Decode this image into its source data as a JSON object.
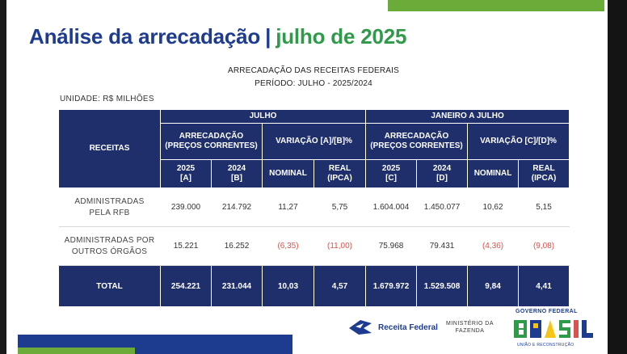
{
  "slide": {
    "title_main": "Análise da arrecadação",
    "title_sep": "|",
    "title_period": "julho de 2025",
    "subtitle_line1": "ARRECADAÇÃO DAS RECEITAS FEDERAIS",
    "subtitle_line2": "PERÍODO: JULHO - 2025/2024",
    "unit": "UNIDADE: R$ MILHÕES"
  },
  "table": {
    "header_receitas": "RECEITAS",
    "group1": "JULHO",
    "group2": "JANEIRO A JULHO",
    "arrecadacao_line1": "ARRECADAÇÃO",
    "arrecadacao_line2": "(PREÇOS CORRENTES)",
    "variacao1": "VARIAÇÃO [A]/[B]%",
    "variacao2": "VARIAÇÃO [C]/[D]%",
    "col_2025_a_year": "2025",
    "col_2025_a_tag": "[A]",
    "col_2024_b_year": "2024",
    "col_2024_b_tag": "[B]",
    "col_2025_c_year": "2025",
    "col_2025_c_tag": "[C]",
    "col_2024_d_year": "2024",
    "col_2024_d_tag": "[D]",
    "nominal1": "NOMINAL",
    "real1_line1": "REAL",
    "real1_line2": "(IPCA)",
    "nominal2": "NOMINAL",
    "real2_line1": "REAL",
    "real2_line2": "(IPCA)",
    "rows": [
      {
        "label_line1": "ADMINISTRADAS",
        "label_line2": "PELA RFB",
        "v": [
          "239.000",
          "214.792",
          "11,27",
          "5,75",
          "1.604.004",
          "1.450.077",
          "10,62",
          "5,15"
        ]
      },
      {
        "label_line1": "ADMINISTRADAS POR",
        "label_line2": "OUTROS ÓRGÃOS",
        "v": [
          "15.221",
          "16.252",
          "(6,35)",
          "(11,00)",
          "75.968",
          "79.431",
          "(4,36)",
          "(9,08)"
        ]
      }
    ],
    "total": {
      "label": "TOTAL",
      "v": [
        "254.221",
        "231.044",
        "10,03",
        "4,57",
        "1.679.972",
        "1.529.508",
        "9,84",
        "4,41"
      ]
    }
  },
  "footer": {
    "receita_federal": "Receita Federal",
    "ministerio_line1": "MINISTÉRIO DA",
    "ministerio_line2": "FAZENDA",
    "governo_federal": "GOVERNO FEDERAL",
    "brasil_logo_text": "BRASIL",
    "uniao_reconstrucao": "UNIÃO E RECONSTRUÇÃO"
  },
  "colors": {
    "navy": "#1e2f6b",
    "title_blue": "#1d3c8f",
    "title_green": "#2f9a4a",
    "negative_red": "#d9534f",
    "accent_green": "#6aab3a"
  }
}
